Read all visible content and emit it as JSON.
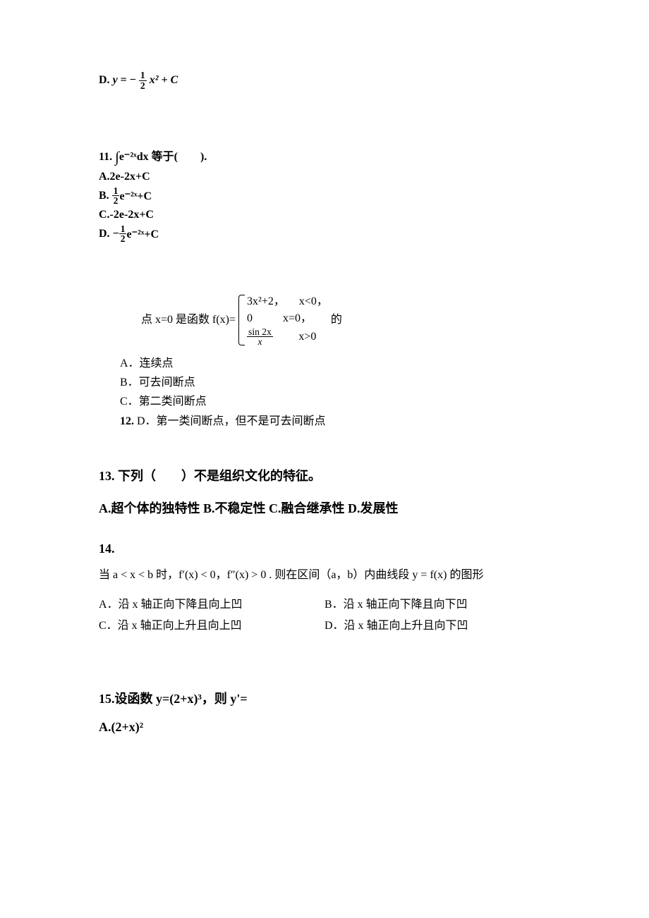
{
  "colors": {
    "text": "#000000",
    "background": "#ffffff"
  },
  "q10": {
    "option_d_prefix": "D.",
    "equation_y": "y",
    "equation_eq": "= −",
    "frac_num": "1",
    "frac_den": "2",
    "equation_tail": "x² + C"
  },
  "q11": {
    "number": "11.",
    "integral_body": "e⁻²ˣdx 等于(　　).",
    "optA": "A.2e-2x+C",
    "optB_prefix": "B.",
    "optB_frac_num": "1",
    "optB_frac_den": "2",
    "optB_tail": "e⁻²ˣ+C",
    "optC": "C.-2e-2x+C",
    "optD_prefix": "D.",
    "optD_neg": "−",
    "optD_frac_num": "1",
    "optD_frac_den": "2",
    "optD_tail": "e⁻²ˣ+C"
  },
  "q12": {
    "number": "12.",
    "stem_prefix": "点 x=0 是函数 f(x)=",
    "stem_suffix": "的",
    "pw": {
      "r1_left": "3x²+2，",
      "r1_right": "x<0，",
      "r2_left": "0",
      "r2_right": "x=0，",
      "r3_left_num": "sin 2x",
      "r3_left_den": "x",
      "r3_right": "x>0"
    },
    "optA": "A．连续点",
    "optB": "B．可去间断点",
    "optC": "C．第二类间断点",
    "optD": "D．第一类间断点，但不是可去间断点"
  },
  "q13": {
    "stem": "13. 下列（　　）不是组织文化的特征。",
    "opts": "A.超个体的独特性  B.不稳定性  C.融合继承性  D.发展性"
  },
  "q14": {
    "number": "14.",
    "stem": "当 a < x < b 时，f′(x) < 0，f″(x) > 0 . 则在区间（a，b）内曲线段 y = f(x) 的图形",
    "optA": "A．沿 x 轴正向下降且向上凹",
    "optB": "B．沿 x 轴正向下降且向下凹",
    "optC": "C．沿 x 轴正向上升且向上凹",
    "optD": "D．沿 x 轴正向上升且向下凹"
  },
  "q15": {
    "stem": "15.设函数 y=(2+x)³，则 y'=",
    "optA": "A.(2+x)²"
  }
}
